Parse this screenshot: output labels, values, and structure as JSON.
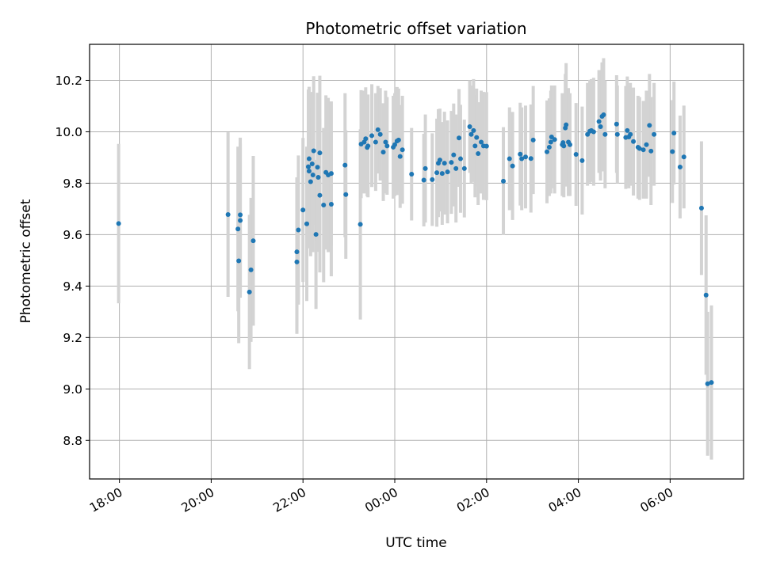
{
  "chart_data": {
    "type": "scatter",
    "title": "Photometric offset variation",
    "xlabel": "UTC time",
    "ylabel": "Photometric offset",
    "x_unit": "UTC time (hours past 18:00)",
    "x_ticks": [
      "18:00",
      "20:00",
      "22:00",
      "00:00",
      "02:00",
      "04:00",
      "06:00"
    ],
    "y_ticks": [
      "8.8",
      "9.0",
      "9.2",
      "9.4",
      "9.6",
      "9.8",
      "10.0",
      "10.2"
    ],
    "xlim": [
      "17:21",
      "07:36"
    ],
    "ylim": [
      8.65,
      10.34
    ],
    "grid": true,
    "colors": {
      "point": "#1f77b4",
      "error_bar": "#d3d3d3",
      "grid": "#b0b0b0"
    },
    "series": [
      {
        "points": [
          [
            "17:59",
            9.643,
            0.31
          ],
          [
            "20:22",
            9.678,
            0.32
          ],
          [
            "20:35",
            9.622,
            0.32
          ],
          [
            "20:36",
            9.498,
            0.32
          ],
          [
            "20:38",
            9.677,
            0.3
          ],
          [
            "20:38",
            9.655,
            0.3
          ],
          [
            "20:50",
            9.377,
            0.3
          ],
          [
            "20:52",
            9.463,
            0.28
          ],
          [
            "20:55",
            9.576,
            0.33
          ],
          [
            "21:52",
            9.533,
            0.29
          ],
          [
            "21:52",
            9.494,
            0.28
          ],
          [
            "21:54",
            9.618,
            0.29
          ],
          [
            "22:00",
            9.696,
            0.28
          ],
          [
            "22:05",
            9.642,
            0.3
          ],
          [
            "22:07",
            9.864,
            0.3
          ],
          [
            "22:08",
            9.847,
            0.3
          ],
          [
            "22:08",
            9.895,
            0.28
          ],
          [
            "22:10",
            9.806,
            0.29
          ],
          [
            "22:12",
            9.875,
            0.28
          ],
          [
            "22:13",
            9.832,
            0.3
          ],
          [
            "22:14",
            9.926,
            0.29
          ],
          [
            "22:17",
            9.601,
            0.29
          ],
          [
            "22:19",
            9.862,
            0.29
          ],
          [
            "22:20",
            9.823,
            0.29
          ],
          [
            "22:22",
            9.918,
            0.3
          ],
          [
            "22:22",
            9.753,
            0.3
          ],
          [
            "22:27",
            9.715,
            0.3
          ],
          [
            "22:30",
            9.842,
            0.3
          ],
          [
            "22:33",
            9.832,
            0.3
          ],
          [
            "22:37",
            9.838,
            0.28
          ],
          [
            "22:37",
            9.718,
            0.28
          ],
          [
            "22:55",
            9.87,
            0.28
          ],
          [
            "22:56",
            9.756,
            0.25
          ],
          [
            "23:15",
            9.64,
            0.37
          ],
          [
            "23:16",
            9.952,
            0.21
          ],
          [
            "23:20",
            9.96,
            0.2
          ],
          [
            "23:22",
            9.973,
            0.2
          ],
          [
            "23:24",
            9.939,
            0.19
          ],
          [
            "23:25",
            9.945,
            0.2
          ],
          [
            "23:30",
            9.985,
            0.2
          ],
          [
            "23:35",
            9.96,
            0.19
          ],
          [
            "23:38",
            10.008,
            0.17
          ],
          [
            "23:41",
            9.99,
            0.18
          ],
          [
            "23:45",
            9.921,
            0.19
          ],
          [
            "23:48",
            9.96,
            0.2
          ],
          [
            "23:50",
            9.945,
            0.19
          ],
          [
            "23:58",
            9.94,
            0.2
          ],
          [
            "00:00",
            9.95,
            0.2
          ],
          [
            "00:03",
            9.964,
            0.21
          ],
          [
            "00:05",
            9.968,
            0.2
          ],
          [
            "00:07",
            9.904,
            0.2
          ],
          [
            "00:10",
            9.93,
            0.21
          ],
          [
            "00:22",
            9.835,
            0.18
          ],
          [
            "00:38",
            9.812,
            0.18
          ],
          [
            "00:40",
            9.857,
            0.21
          ],
          [
            "00:49",
            9.814,
            0.18
          ],
          [
            "00:55",
            9.841,
            0.21
          ],
          [
            "00:57",
            9.878,
            0.21
          ],
          [
            "00:59",
            9.89,
            0.2
          ],
          [
            "01:02",
            9.838,
            0.2
          ],
          [
            "01:05",
            9.878,
            0.2
          ],
          [
            "01:09",
            9.844,
            0.2
          ],
          [
            "01:14",
            9.881,
            0.2
          ],
          [
            "01:17",
            9.91,
            0.2
          ],
          [
            "01:20",
            9.857,
            0.21
          ],
          [
            "01:24",
            9.976,
            0.19
          ],
          [
            "01:26",
            9.895,
            0.21
          ],
          [
            "01:31",
            9.857,
            0.19
          ],
          [
            "01:38",
            10.02,
            0.18
          ],
          [
            "01:40",
            9.99,
            0.19
          ],
          [
            "01:43",
            10.005,
            0.2
          ],
          [
            "01:45",
            9.945,
            0.2
          ],
          [
            "01:47",
            9.978,
            0.19
          ],
          [
            "01:49",
            9.915,
            0.2
          ],
          [
            "01:53",
            9.96,
            0.2
          ],
          [
            "01:56",
            9.945,
            0.21
          ],
          [
            "02:00",
            9.944,
            0.21
          ],
          [
            "02:22",
            9.808,
            0.21
          ],
          [
            "02:30",
            9.895,
            0.2
          ],
          [
            "02:34",
            9.867,
            0.21
          ],
          [
            "02:44",
            9.913,
            0.2
          ],
          [
            "02:46",
            9.895,
            0.2
          ],
          [
            "02:51",
            9.902,
            0.2
          ],
          [
            "02:58",
            9.896,
            0.21
          ],
          [
            "03:01",
            9.968,
            0.21
          ],
          [
            "03:19",
            9.922,
            0.2
          ],
          [
            "03:22",
            9.94,
            0.19
          ],
          [
            "03:24",
            9.96,
            0.2
          ],
          [
            "03:25",
            9.98,
            0.2
          ],
          [
            "03:29",
            9.97,
            0.21
          ],
          [
            "03:39",
            9.95,
            0.2
          ],
          [
            "03:40",
            9.958,
            0.19
          ],
          [
            "03:41",
            9.945,
            0.2
          ],
          [
            "03:43",
            10.015,
            0.21
          ],
          [
            "03:44",
            10.027,
            0.24
          ],
          [
            "03:47",
            9.96,
            0.21
          ],
          [
            "03:49",
            9.95,
            0.2
          ],
          [
            "03:57",
            9.912,
            0.2
          ],
          [
            "04:05",
            9.888,
            0.21
          ],
          [
            "04:12",
            9.99,
            0.2
          ],
          [
            "04:15",
            10.002,
            0.2
          ],
          [
            "04:17",
            10.005,
            0.2
          ],
          [
            "04:20",
            10.0,
            0.21
          ],
          [
            "04:27",
            10.04,
            0.2
          ],
          [
            "04:29",
            10.02,
            0.21
          ],
          [
            "04:31",
            10.06,
            0.21
          ],
          [
            "04:33",
            10.066,
            0.22
          ],
          [
            "04:35",
            9.99,
            0.21
          ],
          [
            "04:50",
            10.03,
            0.19
          ],
          [
            "04:51",
            9.99,
            0.19
          ],
          [
            "05:02",
            9.978,
            0.2
          ],
          [
            "05:04",
            10.005,
            0.21
          ],
          [
            "05:06",
            9.98,
            0.2
          ],
          [
            "05:08",
            9.99,
            0.2
          ],
          [
            "05:12",
            9.962,
            0.21
          ],
          [
            "05:18",
            9.94,
            0.2
          ],
          [
            "05:20",
            9.935,
            0.2
          ],
          [
            "05:25",
            9.93,
            0.19
          ],
          [
            "05:29",
            9.95,
            0.21
          ],
          [
            "05:33",
            10.025,
            0.2
          ],
          [
            "05:35",
            9.925,
            0.21
          ],
          [
            "05:39",
            9.99,
            0.2
          ],
          [
            "06:03",
            9.923,
            0.2
          ],
          [
            "06:05",
            9.995,
            0.2
          ],
          [
            "06:13",
            9.863,
            0.2
          ],
          [
            "06:18",
            9.902,
            0.2
          ],
          [
            "06:41",
            9.703,
            0.26
          ],
          [
            "06:47",
            9.365,
            0.31
          ],
          [
            "06:49",
            9.02,
            0.28
          ],
          [
            "06:54",
            9.025,
            0.3
          ]
        ]
      }
    ]
  }
}
